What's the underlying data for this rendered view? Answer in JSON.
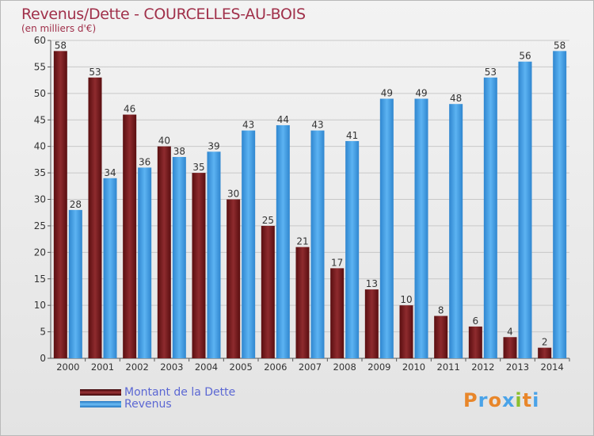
{
  "title": "Revenus/Dette - COURCELLES-AU-BOIS",
  "subtitle": "(en milliers d'€)",
  "logo": "Proxiti",
  "colors": {
    "dette": "#7a1f22",
    "revenus": "#4aa3e8",
    "title": "#a0304a",
    "legend_text": "#5b67d3"
  },
  "chart_data": {
    "type": "bar",
    "categories": [
      "2000",
      "2001",
      "2002",
      "2003",
      "2004",
      "2005",
      "2006",
      "2007",
      "2008",
      "2009",
      "2010",
      "2011",
      "2012",
      "2013",
      "2014"
    ],
    "series": [
      {
        "name": "Montant de la Dette",
        "values": [
          58,
          53,
          46,
          40,
          35,
          30,
          25,
          21,
          17,
          13,
          10,
          8,
          6,
          4,
          2
        ]
      },
      {
        "name": "Revenus",
        "values": [
          28,
          34,
          36,
          38,
          39,
          43,
          44,
          43,
          41,
          49,
          49,
          48,
          53,
          56,
          58
        ]
      }
    ],
    "ylim": [
      0,
      60
    ],
    "yticks": [
      0,
      5,
      10,
      15,
      20,
      25,
      30,
      35,
      40,
      45,
      50,
      55,
      60
    ],
    "grid": true,
    "legend_position": "bottom-left"
  }
}
